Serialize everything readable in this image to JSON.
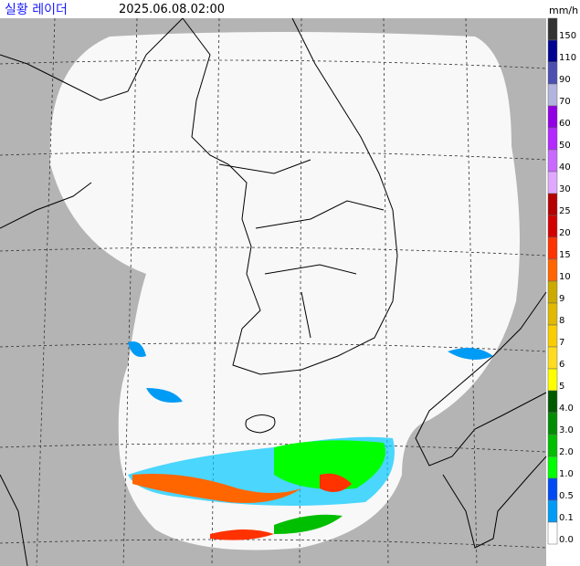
{
  "header": {
    "title": "실황 레이더",
    "timestamp": "2025.06.08.02:00",
    "unit": "mm/h"
  },
  "legend": {
    "items": [
      {
        "label": "150",
        "color": "#333333"
      },
      {
        "label": "110",
        "color": "#000390"
      },
      {
        "label": "90",
        "color": "#4c4eb1"
      },
      {
        "label": "70",
        "color": "#b3b4de"
      },
      {
        "label": "60",
        "color": "#9300e4"
      },
      {
        "label": "50",
        "color": "#b329ff"
      },
      {
        "label": "40",
        "color": "#c969ff"
      },
      {
        "label": "30",
        "color": "#e0a9ff"
      },
      {
        "label": "25",
        "color": "#b40000"
      },
      {
        "label": "20",
        "color": "#d20000"
      },
      {
        "label": "15",
        "color": "#ff3200"
      },
      {
        "label": "10",
        "color": "#ff6600"
      },
      {
        "label": "9",
        "color": "#ccaa00"
      },
      {
        "label": "8",
        "color": "#e0b900"
      },
      {
        "label": "7",
        "color": "#f9cd00"
      },
      {
        "label": "6",
        "color": "#ffdc1f"
      },
      {
        "label": "5",
        "color": "#ffff00"
      },
      {
        "label": "4.0",
        "color": "#005a00"
      },
      {
        "label": "3.0",
        "color": "#008c00"
      },
      {
        "label": "2.0",
        "color": "#00be00"
      },
      {
        "label": "1.0",
        "color": "#00ff00"
      },
      {
        "label": "0.5",
        "color": "#004af5"
      },
      {
        "label": "0.1",
        "color": "#009bf5"
      },
      {
        "label": "0.0",
        "color": "#ffffff"
      }
    ]
  }
}
